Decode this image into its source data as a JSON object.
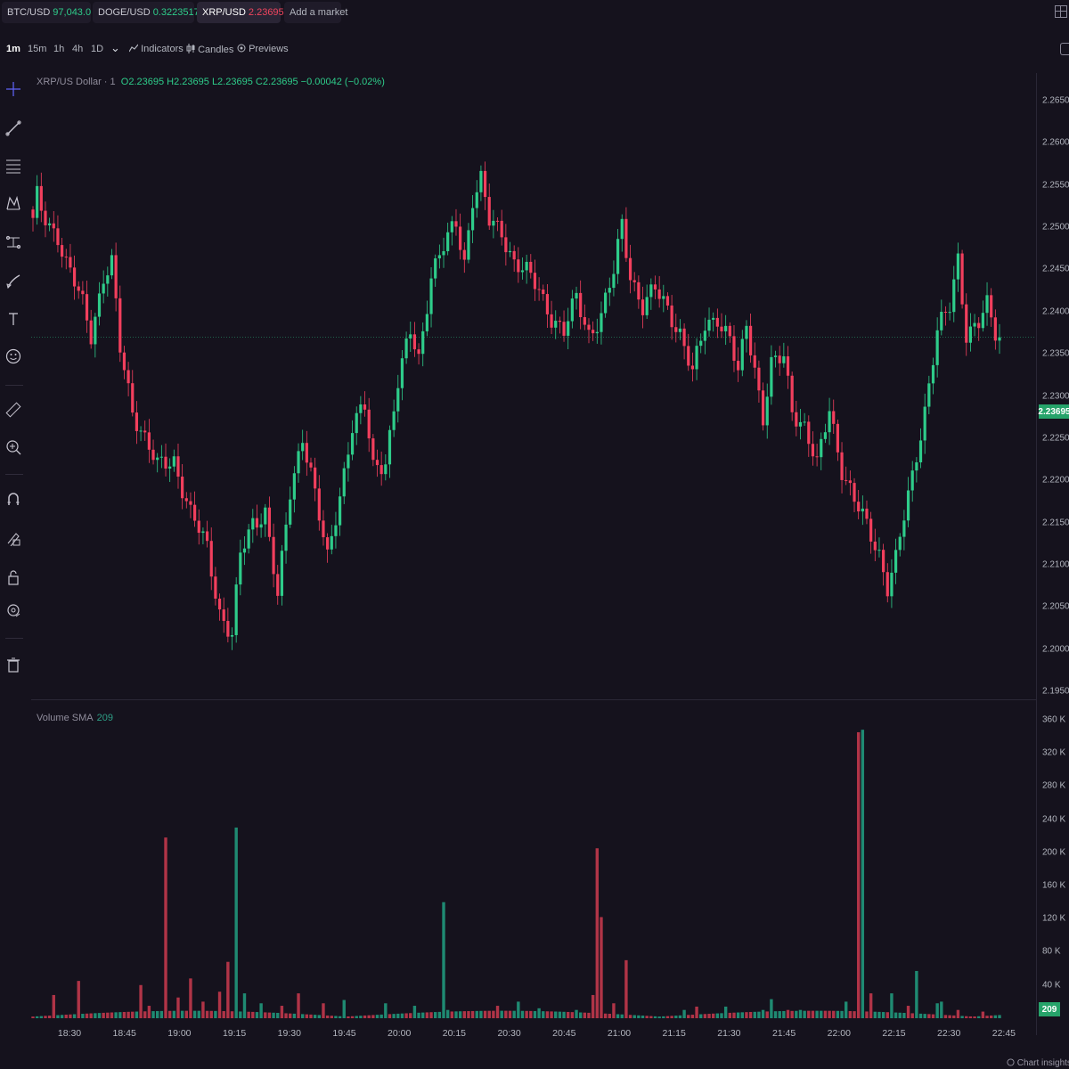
{
  "tabs": [
    {
      "symbol": "BTC/USD",
      "price": "97,043.0",
      "direction": "up",
      "close": "X"
    },
    {
      "symbol": "DOGE/USD",
      "price": "0.3223517",
      "direction": "up",
      "close": "X"
    },
    {
      "symbol": "XRP/USD",
      "price": "2.23695",
      "direction": "down",
      "close": "X",
      "active": true
    }
  ],
  "add_market_label": "Add a market",
  "toolbar": {
    "intervals": [
      "1m",
      "15m",
      "1h",
      "4h",
      "1D"
    ],
    "active_interval": "1m",
    "dropdown": "⌄",
    "indicators_label": "Indicators",
    "candles_label": "Candles",
    "previews_label": "Previews"
  },
  "sidebar_icons": [
    "crosshair-icon",
    "trend-line-icon",
    "fib-retracement-icon",
    "pattern-icon",
    "forecast-icon",
    "brush-icon",
    "text-icon",
    "emoji-icon",
    "ruler-icon",
    "zoom-in-icon",
    "magnet-icon",
    "lock-drawing-icon",
    "lock-icon",
    "eye-icon",
    "trash-icon"
  ],
  "legend": {
    "title": "XRP/US Dollar · 1",
    "open": "O2.23695",
    "high": "H2.23695",
    "low": "L2.23695",
    "close": "C2.23695",
    "change": "−0.00042 (−0.02%)"
  },
  "volume_legend": {
    "label": "Volume SMA",
    "value": "209"
  },
  "current_price_label": "2.23695",
  "volume_tag": "209",
  "chart_insights_label": "Chart insights",
  "colors": {
    "up": "#26a69a",
    "down": "#ef5350",
    "up_bright": "#2ecc8a",
    "down_bright": "#f23f5d",
    "background": "#15121d"
  },
  "chart_data": [
    {
      "type": "candlestick",
      "title": "XRP/US Dollar · 1",
      "y_ticks": [
        "2.26500",
        "2.26000",
        "2.25500",
        "2.25000",
        "2.24500",
        "2.24000",
        "2.23500",
        "2.23000",
        "2.22500",
        "2.22000",
        "2.21500",
        "2.21000",
        "2.20500",
        "2.20000",
        "2.19500"
      ],
      "ylim": [
        2.1945,
        2.2695
      ],
      "x_ticks": [
        "18:30",
        "18:45",
        "19:00",
        "19:15",
        "19:30",
        "19:45",
        "20:00",
        "20:15",
        "20:30",
        "20:45",
        "21:00",
        "21:15",
        "21:30",
        "21:45",
        "22:00",
        "22:15",
        "22:30",
        "22:45"
      ],
      "anchors": [
        [
          0,
          2.2505
        ],
        [
          1,
          2.2535
        ],
        [
          2,
          2.252
        ],
        [
          6,
          2.249
        ],
        [
          8,
          2.2455
        ],
        [
          12,
          2.241
        ],
        [
          14,
          2.2375
        ],
        [
          17,
          2.244
        ],
        [
          19,
          2.2455
        ],
        [
          21,
          2.2355
        ],
        [
          24,
          2.2285
        ],
        [
          27,
          2.225
        ],
        [
          30,
          2.2215
        ],
        [
          34,
          2.2225
        ],
        [
          38,
          2.216
        ],
        [
          42,
          2.212
        ],
        [
          45,
          2.2045
        ],
        [
          48,
          2.2015
        ],
        [
          50,
          2.211
        ],
        [
          53,
          2.215
        ],
        [
          56,
          2.2165
        ],
        [
          59,
          2.206
        ],
        [
          62,
          2.2185
        ],
        [
          65,
          2.2255
        ],
        [
          67,
          2.221
        ],
        [
          69,
          2.2155
        ],
        [
          71,
          2.2105
        ],
        [
          74,
          2.2185
        ],
        [
          77,
          2.2265
        ],
        [
          80,
          2.2285
        ],
        [
          82,
          2.2215
        ],
        [
          85,
          2.2225
        ],
        [
          88,
          2.2315
        ],
        [
          91,
          2.2375
        ],
        [
          93,
          2.2345
        ],
        [
          96,
          2.2445
        ],
        [
          99,
          2.2475
        ],
        [
          102,
          2.2505
        ],
        [
          104,
          2.246
        ],
        [
          106,
          2.2535
        ],
        [
          108,
          2.2555
        ],
        [
          110,
          2.2505
        ],
        [
          113,
          2.2495
        ],
        [
          116,
          2.246
        ],
        [
          119,
          2.2445
        ],
        [
          122,
          2.2425
        ],
        [
          125,
          2.2395
        ],
        [
          128,
          2.2375
        ],
        [
          131,
          2.2415
        ],
        [
          134,
          2.2375
        ],
        [
          137,
          2.2395
        ],
        [
          140,
          2.2445
        ],
        [
          142,
          2.2505
        ],
        [
          144,
          2.2445
        ],
        [
          147,
          2.2405
        ],
        [
          150,
          2.2425
        ],
        [
          153,
          2.2405
        ],
        [
          156,
          2.2375
        ],
        [
          159,
          2.2325
        ],
        [
          162,
          2.2385
        ],
        [
          165,
          2.2395
        ],
        [
          168,
          2.2365
        ],
        [
          170,
          2.2325
        ],
        [
          172,
          2.2385
        ],
        [
          174,
          2.2335
        ],
        [
          176,
          2.2275
        ],
        [
          178,
          2.2335
        ],
        [
          181,
          2.2345
        ],
        [
          183,
          2.2285
        ],
        [
          186,
          2.2265
        ],
        [
          189,
          2.2215
        ],
        [
          192,
          2.2285
        ],
        [
          195,
          2.2215
        ],
        [
          198,
          2.2175
        ],
        [
          201,
          2.2145
        ],
        [
          204,
          2.2115
        ],
        [
          206,
          2.2075
        ],
        [
          208,
          2.2105
        ],
        [
          210,
          2.2155
        ],
        [
          212,
          2.2205
        ],
        [
          215,
          2.2285
        ],
        [
          218,
          2.2375
        ],
        [
          221,
          2.2405
        ],
        [
          223,
          2.2465
        ],
        [
          225,
          2.2375
        ],
        [
          228,
          2.2385
        ],
        [
          230,
          2.2405
        ],
        [
          232,
          2.2375
        ]
      ],
      "volume": {
        "y_ticks": [
          "360 K",
          "320 K",
          "280 K",
          "240 K",
          "200 K",
          "160 K",
          "120 K",
          "80 K",
          "40 K"
        ],
        "ylim": [
          0,
          375000
        ],
        "sma": 209,
        "spikes": [
          [
            5,
            28000,
            "down"
          ],
          [
            11,
            45000,
            "down"
          ],
          [
            26,
            40000,
            "down"
          ],
          [
            28,
            15000,
            "down"
          ],
          [
            32,
            12000,
            "up"
          ],
          [
            35,
            25000,
            "down"
          ],
          [
            38,
            48000,
            "down"
          ],
          [
            41,
            20000,
            "down"
          ],
          [
            45,
            32000,
            "down"
          ],
          [
            49,
            145000,
            "up"
          ],
          [
            51,
            30000,
            "up"
          ],
          [
            55,
            18000,
            "up"
          ],
          [
            60,
            15000,
            "down"
          ],
          [
            64,
            30000,
            "down"
          ],
          [
            70,
            18000,
            "down"
          ],
          [
            75,
            22000,
            "up"
          ],
          [
            85,
            20000,
            "up"
          ],
          [
            92,
            15000,
            "up"
          ],
          [
            100,
            10000,
            "up"
          ],
          [
            112,
            15000,
            "down"
          ],
          [
            117,
            20000,
            "up"
          ],
          [
            122,
            12000,
            "up"
          ],
          [
            131,
            10000,
            "up"
          ],
          [
            135,
            28000,
            "down"
          ],
          [
            140,
            18000,
            "down"
          ],
          [
            157,
            10000,
            "up"
          ],
          [
            160,
            14000,
            "down"
          ],
          [
            167,
            14000,
            "up"
          ],
          [
            176,
            10000,
            "up"
          ],
          [
            178,
            23000,
            "up"
          ],
          [
            182,
            10000,
            "down"
          ],
          [
            185,
            10000,
            "up"
          ],
          [
            196,
            20000,
            "up"
          ],
          [
            202,
            30000,
            "down"
          ],
          [
            207,
            30000,
            "up"
          ],
          [
            211,
            15000,
            "down"
          ],
          [
            218,
            18000,
            "up"
          ],
          [
            219,
            20000,
            "up"
          ],
          [
            223,
            10000,
            "down"
          ],
          [
            229,
            8000,
            "down"
          ]
        ],
        "big_spikes": [
          [
            32,
            218000,
            "down"
          ],
          [
            47,
            68000,
            "down"
          ],
          [
            49,
            230000,
            "up"
          ],
          [
            85,
            18000,
            "up"
          ],
          [
            99,
            140000,
            "up"
          ],
          [
            136,
            205000,
            "down"
          ],
          [
            137,
            122000,
            "down"
          ],
          [
            143,
            70000,
            "down"
          ],
          [
            199,
            345000,
            "down"
          ],
          [
            200,
            348000,
            "up"
          ],
          [
            213,
            57000,
            "up"
          ]
        ]
      }
    }
  ]
}
